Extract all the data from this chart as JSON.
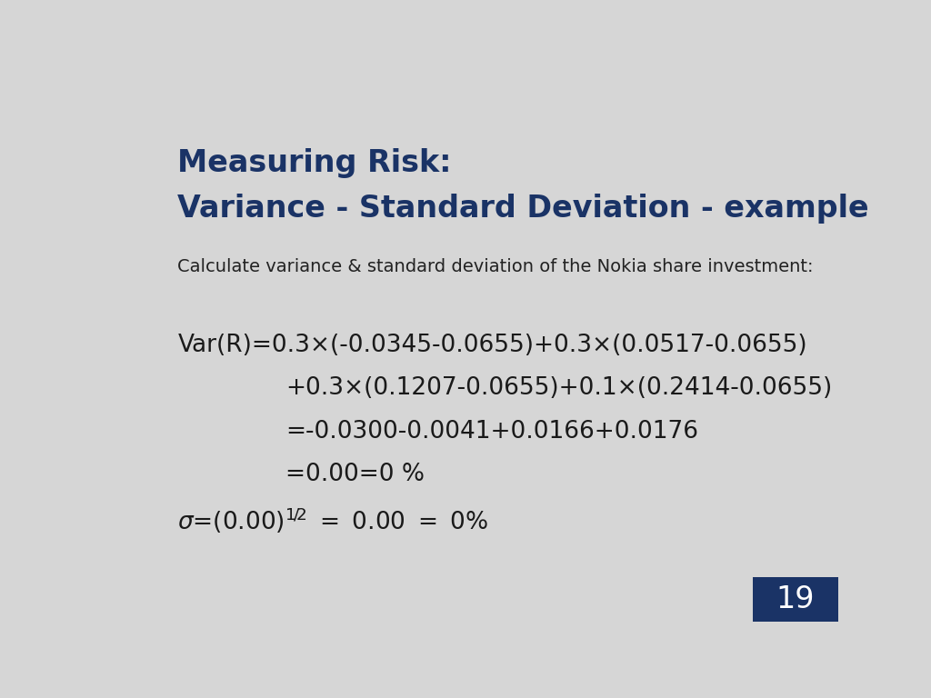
{
  "bg_color": "#d6d6d6",
  "title_line1": "Measuring Risk:",
  "title_line2": "Variance - Standard Deviation - example",
  "title_color": "#1a3366",
  "title_fontsize": 24,
  "subtitle": "Calculate variance & standard deviation of the Nokia share investment:",
  "subtitle_color": "#222222",
  "subtitle_fontsize": 14,
  "body_color": "#1a1a1a",
  "body_fontsize": 19,
  "line1": "Var(R)=0.3×(-0.0345-0.0655)+0.3×(0.0517-0.0655)",
  "line2": "+0.3×(0.1207-0.0655)+0.1×(0.2414-0.0655)",
  "line3": "=-0.0300-0.0041+0.0166+0.0176",
  "line4": "=0.00=0 %",
  "page_number": "19",
  "page_bg": "#1a3366",
  "page_color": "#ffffff",
  "page_fontsize": 24
}
